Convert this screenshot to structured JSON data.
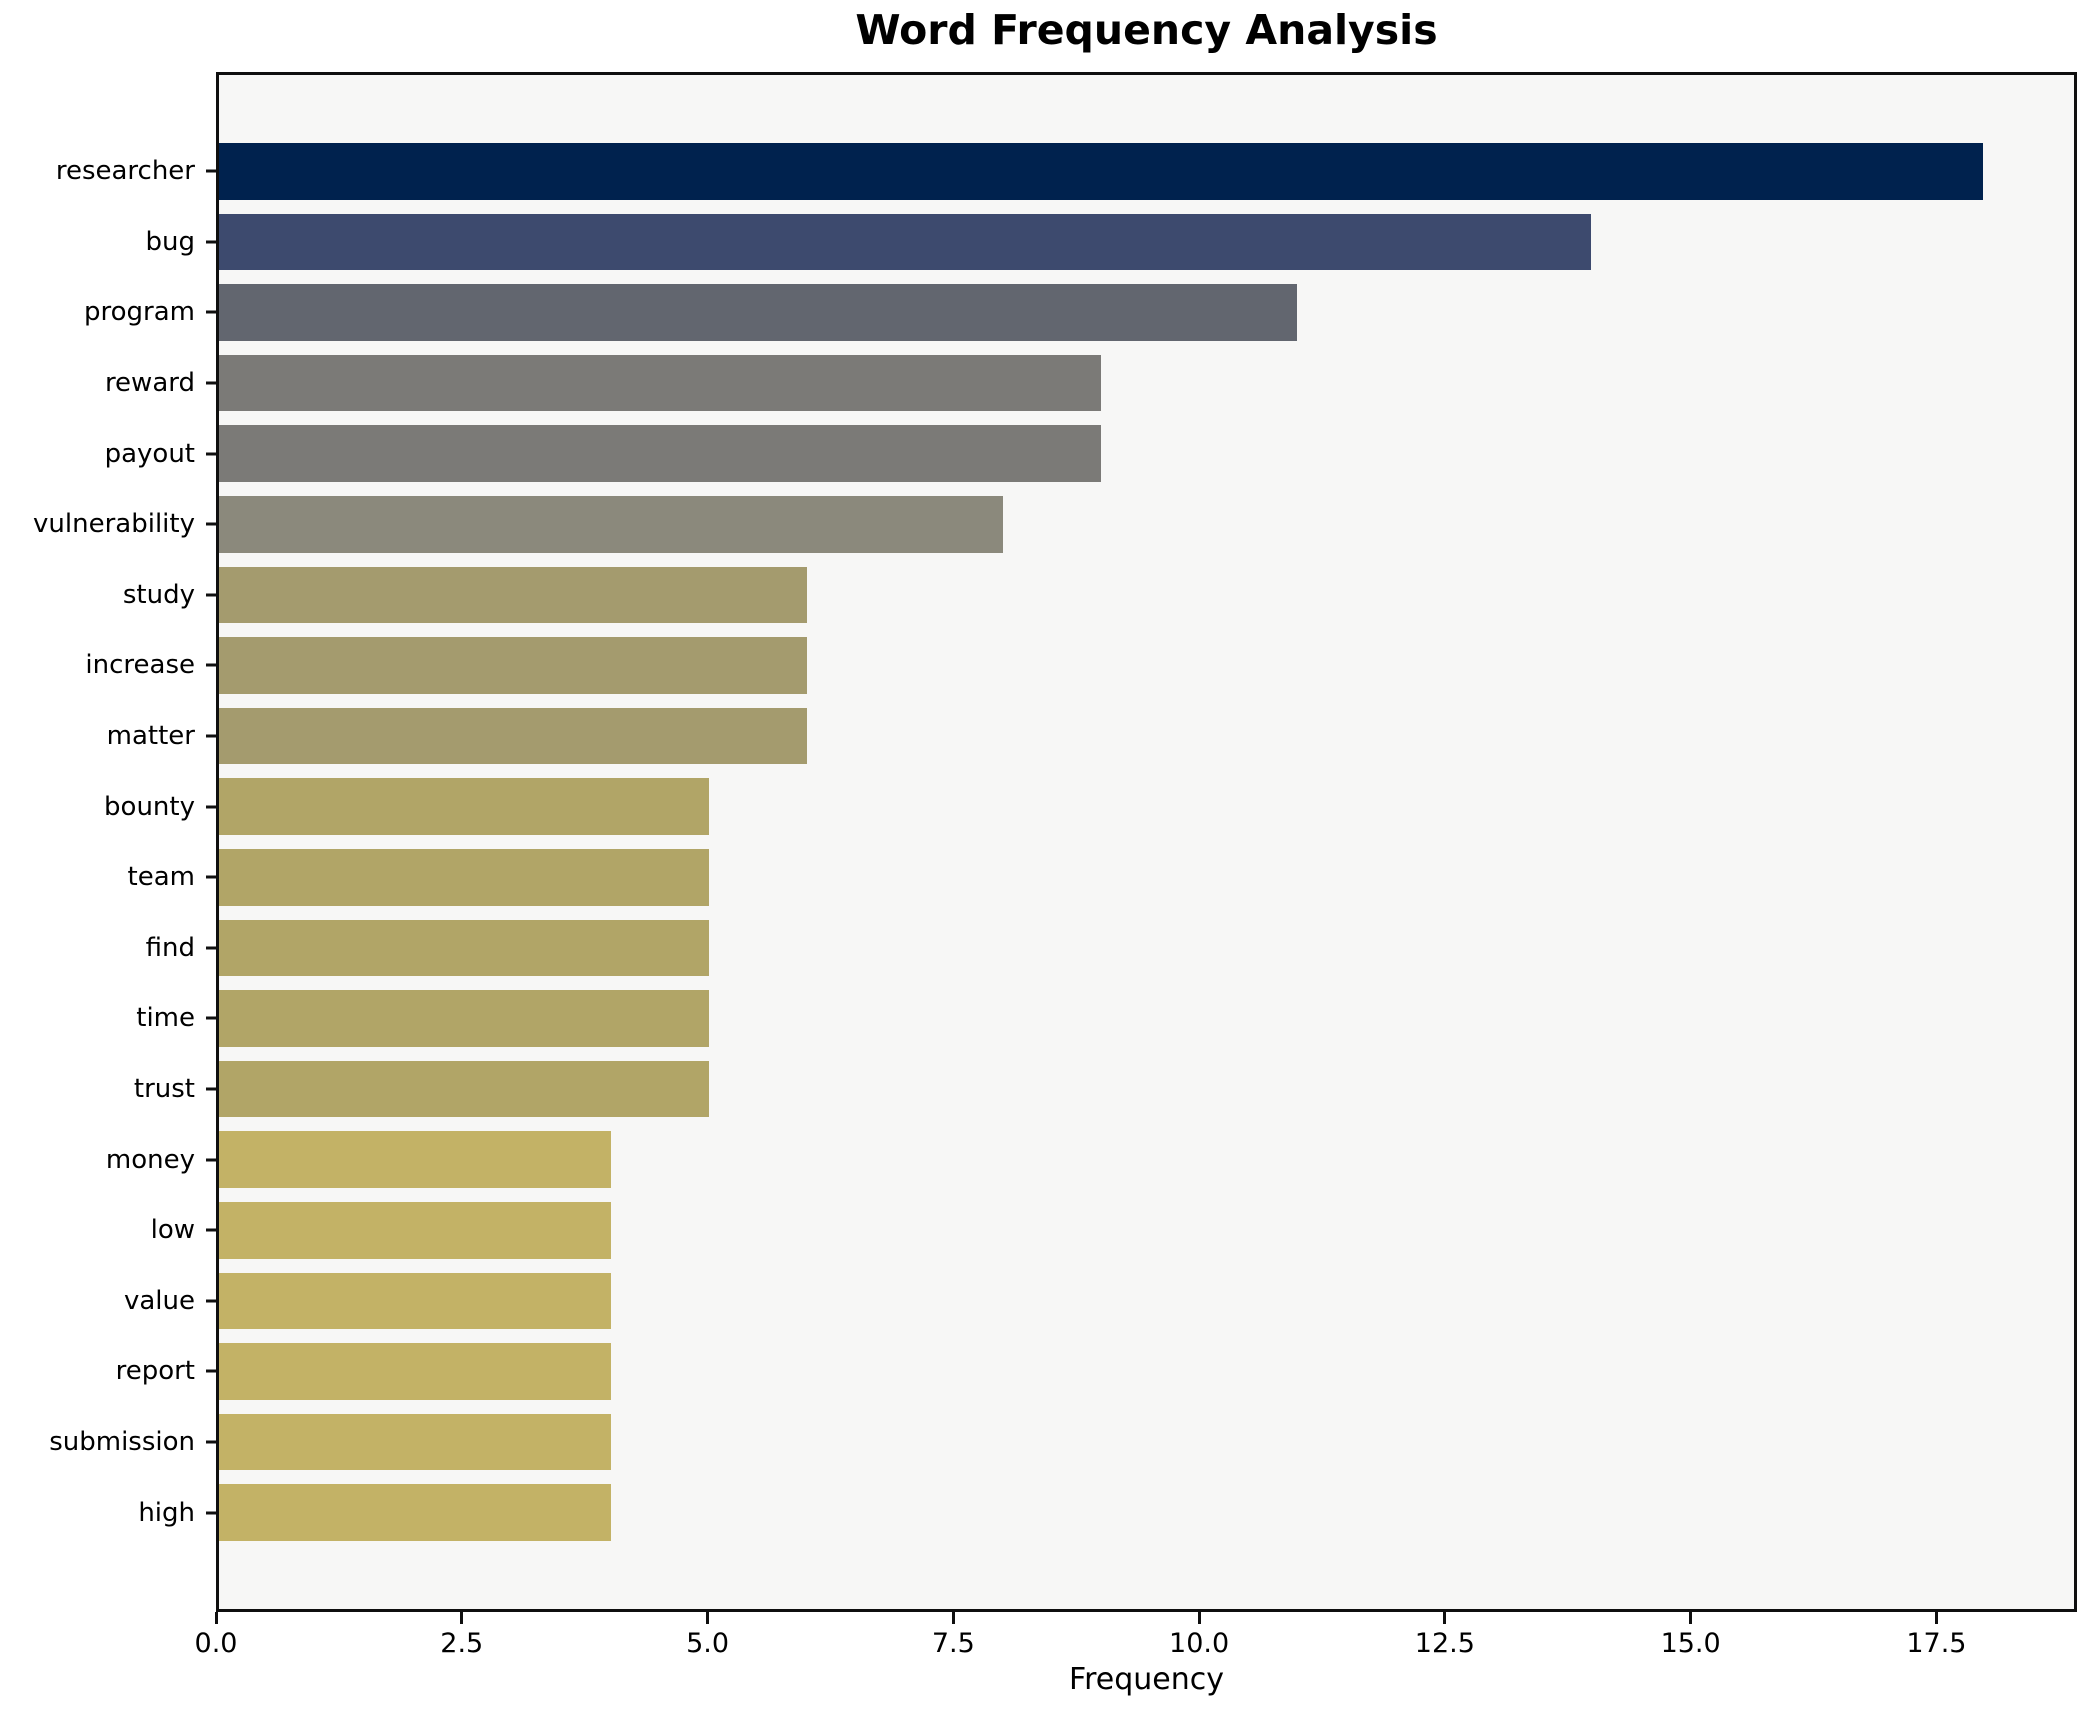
{
  "chart_data": {
    "type": "bar",
    "orientation": "horizontal",
    "title": "Word Frequency Analysis",
    "xlabel": "Frequency",
    "ylabel": "",
    "categories": [
      "researcher",
      "bug",
      "program",
      "reward",
      "payout",
      "vulnerability",
      "study",
      "increase",
      "matter",
      "bounty",
      "team",
      "find",
      "time",
      "trust",
      "money",
      "low",
      "value",
      "report",
      "submission",
      "high"
    ],
    "values": [
      18,
      14,
      11,
      9,
      9,
      8,
      6,
      6,
      6,
      5,
      5,
      5,
      5,
      5,
      4,
      4,
      4,
      4,
      4,
      4
    ],
    "bar_colors": [
      "#00224e",
      "#3d4a6e",
      "#62666f",
      "#7b7a77",
      "#7b7a77",
      "#8b897c",
      "#a49b6e",
      "#a49b6e",
      "#a49b6e",
      "#b1a567",
      "#b1a567",
      "#b1a567",
      "#b1a567",
      "#b1a567",
      "#c3b266",
      "#c3b266",
      "#c3b266",
      "#c3b266",
      "#c3b266",
      "#c3b266"
    ],
    "xlim": [
      0,
      18.93
    ],
    "x_ticks": [
      0.0,
      2.5,
      5.0,
      7.5,
      10.0,
      12.5,
      15.0,
      17.5
    ],
    "x_tick_labels": [
      "0.0",
      "2.5",
      "5.0",
      "7.5",
      "10.0",
      "12.5",
      "15.0",
      "17.5"
    ],
    "grid": false,
    "legend": false,
    "plot_background": "#f7f7f6",
    "figure_background": "#ffffff",
    "spine_color": "#0f0f0f"
  }
}
